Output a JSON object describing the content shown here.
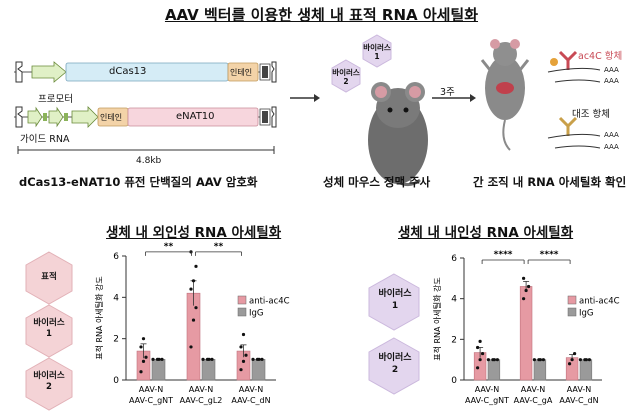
{
  "header": {
    "title": "AAV 벡터를 이용한 생체 내 표적 RNA 아세틸화"
  },
  "construct": {
    "dcas13_label": "dCas13",
    "intein_label_1": "인테인",
    "intein_label_2": "인테인",
    "enat10_label": "eNAT10",
    "promoter_label": "프로모터",
    "guide_label": "가이드 RNA",
    "size_label": "4.8kb",
    "caption": "dCas13-eNAT10 퓨전 단백질의 AAV 암호화"
  },
  "injection": {
    "virus1_label": "바이러스\n1",
    "virus2_label": "바이러스\n2",
    "caption": "성체 마우스 정맥 주사",
    "time_label": "3주"
  },
  "detection": {
    "ac4c_antibody_label": "ac4C 항체",
    "control_antibody_label": "대조 항체",
    "poly_a": "AAA",
    "caption": "간 조직 내 RNA 아세틸화 확인"
  },
  "left_panel": {
    "title": "생체 내 외인성 RNA 아세틸화",
    "hex_labels": [
      "표적",
      "바이러스\n1",
      "바이러스\n2"
    ]
  },
  "right_panel": {
    "title": "생체 내 내인성 RNA 아세틸화",
    "hex_labels": [
      "바이러스\n1",
      "바이러스\n2"
    ]
  },
  "colors": {
    "anti_ac4c": "#e69aa3",
    "igg": "#9a9a9a",
    "hex_pink_fill": "#f4d3d6",
    "hex_purple_fill": "#e3d6ee",
    "dcas13_fill": "#d5ecf6",
    "enat10_fill": "#f7d6dd",
    "intein_fill": "#f3d3a8",
    "promoter_fill": "#e0f0c6"
  },
  "chart_data": [
    {
      "type": "bar",
      "ylabel": "표적 RNA 아세틸화 강도",
      "ylim": [
        0,
        6
      ],
      "yticks": [
        0,
        2,
        4,
        6
      ],
      "categories": [
        [
          "AAV-N",
          "AAV-C_gNT"
        ],
        [
          "AAV-N",
          "AAV-C_gL2"
        ],
        [
          "AAV-N",
          "AAV-C_dN"
        ]
      ],
      "series": [
        {
          "name": "anti-ac4C",
          "values": [
            1.4,
            4.2,
            1.4
          ],
          "errors": [
            0.35,
            0.6,
            0.3
          ],
          "points": [
            [
              0.4,
              0.9,
              1.1,
              1.6,
              2.0
            ],
            [
              1.6,
              2.9,
              3.5,
              4.4,
              4.8,
              5.5,
              6.2
            ],
            [
              0.5,
              0.9,
              1.2,
              1.6,
              2.2
            ]
          ]
        },
        {
          "name": "IgG",
          "values": [
            1.0,
            1.0,
            1.0
          ],
          "errors": [
            0,
            0,
            0
          ],
          "points": [
            [
              1.0,
              1.0,
              1.0,
              1.0
            ],
            [
              1.0,
              1.0,
              1.0,
              1.0
            ],
            [
              1.0,
              1.0,
              1.0,
              1.0
            ]
          ]
        }
      ],
      "significance": [
        "**",
        "**"
      ],
      "legend_position": "right"
    },
    {
      "type": "bar",
      "ylabel": "표적 RNA 아세틸화 강도",
      "ylim": [
        0,
        6
      ],
      "yticks": [
        0,
        2,
        4,
        6
      ],
      "categories": [
        [
          "AAV-N",
          "AAV-C_gNT"
        ],
        [
          "AAV-N",
          "AAV-C_gA"
        ],
        [
          "AAV-N",
          "AAV-C_dN"
        ]
      ],
      "series": [
        {
          "name": "anti-ac4C",
          "values": [
            1.35,
            4.6,
            1.1
          ],
          "errors": [
            0.25,
            0.25,
            0.15
          ],
          "points": [
            [
              0.6,
              1.0,
              1.3,
              1.6,
              1.9
            ],
            [
              4.0,
              4.4,
              4.6,
              5.0
            ],
            [
              0.8,
              1.0,
              1.3
            ]
          ]
        },
        {
          "name": "IgG",
          "values": [
            1.0,
            1.0,
            1.0
          ],
          "errors": [
            0,
            0,
            0
          ],
          "points": [
            [
              1.0,
              1.0,
              1.0,
              1.0
            ],
            [
              1.0,
              1.0,
              1.0,
              1.0
            ],
            [
              1.0,
              1.0,
              1.0,
              1.0
            ]
          ]
        }
      ],
      "significance": [
        "****",
        "****"
      ],
      "legend_position": "right"
    }
  ]
}
